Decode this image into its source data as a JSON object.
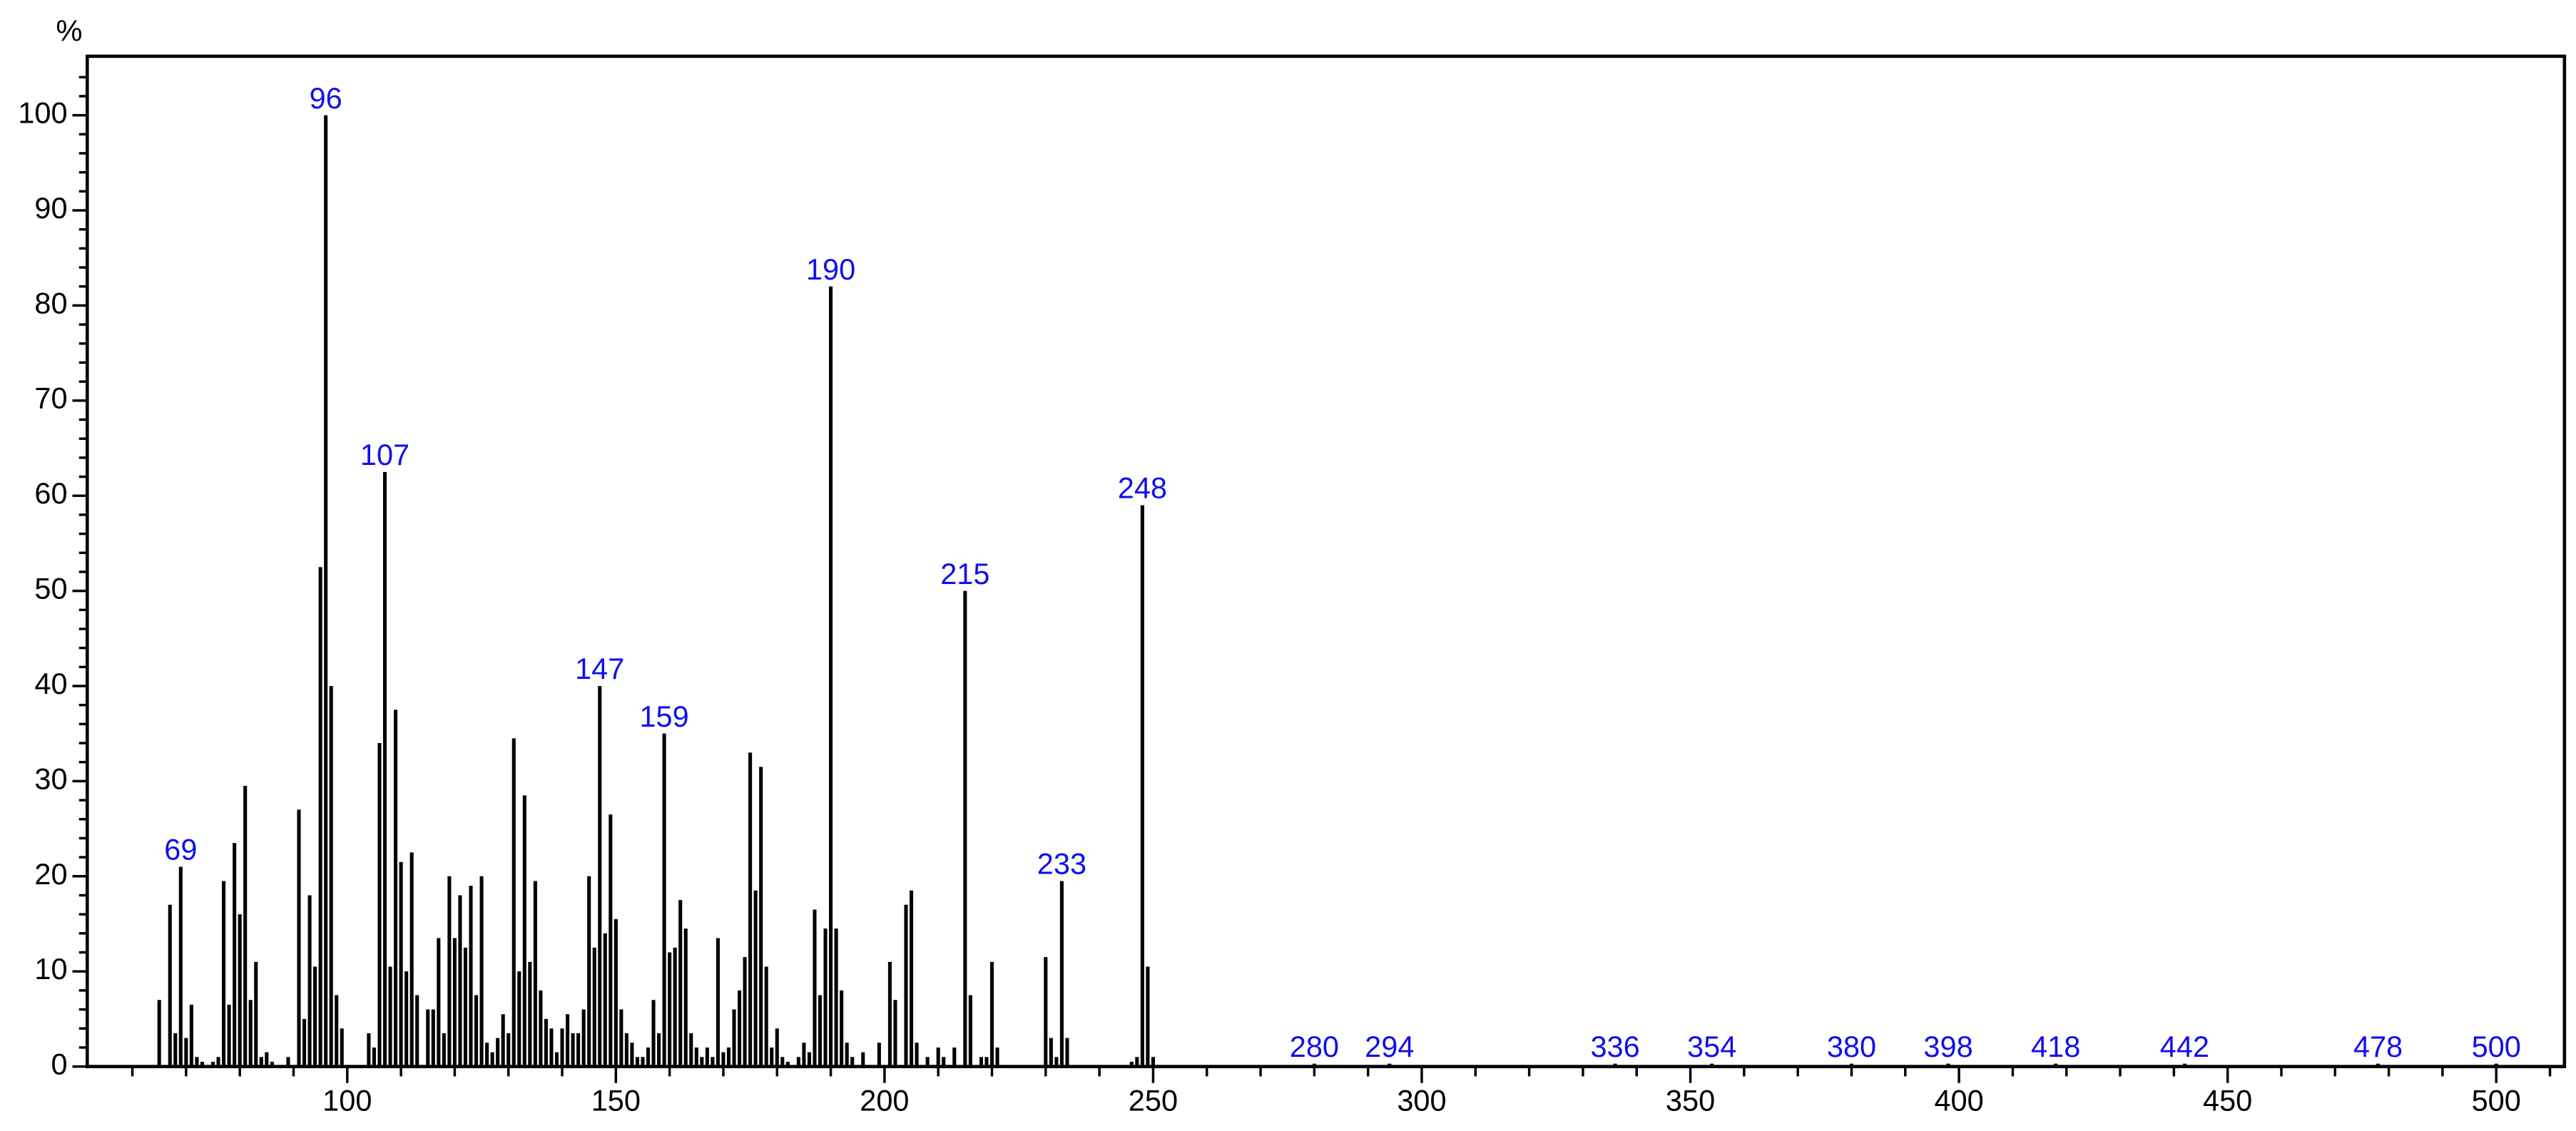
{
  "chart_data": {
    "type": "bar",
    "y_label": "%",
    "x": [
      65,
      67,
      68,
      69,
      70,
      71,
      72,
      73,
      75,
      76,
      77,
      78,
      79,
      80,
      81,
      82,
      83,
      84,
      85,
      86,
      89,
      91,
      92,
      93,
      94,
      95,
      96,
      97,
      98,
      99,
      104,
      105,
      106,
      107,
      108,
      109,
      110,
      111,
      112,
      113,
      115,
      116,
      117,
      118,
      119,
      120,
      121,
      122,
      123,
      124,
      125,
      126,
      127,
      128,
      129,
      130,
      131,
      132,
      133,
      134,
      135,
      136,
      137,
      138,
      139,
      140,
      141,
      142,
      143,
      144,
      145,
      146,
      147,
      148,
      149,
      150,
      151,
      152,
      153,
      154,
      155,
      156,
      157,
      158,
      159,
      160,
      161,
      162,
      163,
      164,
      165,
      166,
      167,
      168,
      169,
      170,
      171,
      172,
      173,
      174,
      175,
      176,
      177,
      178,
      179,
      180,
      181,
      182,
      184,
      185,
      186,
      187,
      188,
      189,
      190,
      191,
      192,
      193,
      194,
      196,
      199,
      201,
      202,
      204,
      205,
      206,
      208,
      210,
      211,
      213,
      215,
      216,
      218,
      219,
      220,
      221,
      230,
      231,
      232,
      233,
      234,
      246,
      247,
      248,
      249,
      250,
      280,
      294,
      336,
      354,
      380,
      398,
      418,
      442,
      478,
      500
    ],
    "values": [
      7,
      17,
      3.5,
      21,
      3,
      6.5,
      1,
      0.5,
      0.5,
      1,
      19.5,
      6.5,
      23.5,
      16,
      29.5,
      7,
      11,
      1,
      1.5,
      0.5,
      1,
      27,
      5,
      18,
      10.5,
      52.5,
      100,
      40,
      7.5,
      4,
      3.5,
      2,
      34,
      62.5,
      10.5,
      37.5,
      21.5,
      10,
      22.5,
      7.5,
      6,
      6,
      13.5,
      3.5,
      20,
      13.5,
      18,
      12.5,
      19,
      7.5,
      20,
      2.5,
      1.5,
      3,
      5.5,
      3.5,
      34.5,
      10,
      28.5,
      11,
      19.5,
      8,
      5,
      4,
      1.5,
      4,
      5.5,
      3.5,
      3.5,
      6,
      20,
      12.5,
      40,
      14,
      26.5,
      15.5,
      6,
      3.5,
      2.5,
      1,
      1,
      2,
      7,
      3.5,
      35,
      12,
      12.5,
      17.5,
      14.5,
      3.5,
      2,
      1,
      2,
      1,
      13.5,
      1.5,
      2,
      6,
      8,
      11.5,
      33,
      18.5,
      31.5,
      10.5,
      2,
      4,
      1,
      0.5,
      1,
      2.5,
      1.5,
      16.5,
      7.5,
      14.5,
      82,
      14.5,
      8,
      2.5,
      1,
      1.5,
      2.5,
      11,
      7,
      17,
      18.5,
      2.5,
      1,
      2,
      1,
      2,
      50,
      7.5,
      1,
      1,
      11,
      2,
      11.5,
      3,
      1,
      19.5,
      3,
      0.5,
      1,
      59,
      10.5,
      1,
      0.3,
      0.3,
      0.3,
      0.3,
      0.3,
      0.3,
      0.3,
      0.3,
      0.3,
      0.3
    ],
    "peak_labels": [
      69,
      96,
      107,
      147,
      159,
      190,
      215,
      233,
      248,
      280,
      294,
      336,
      354,
      380,
      398,
      418,
      442,
      478,
      500
    ],
    "color": "#000000",
    "label_color": "#1010ee",
    "xlim": [
      51.6,
      512.7
    ],
    "ylim": [
      0,
      106.2
    ],
    "xticks": [
      100,
      150,
      200,
      250,
      300,
      350,
      400,
      450,
      500
    ],
    "xminorticks": [
      60,
      70,
      80,
      90,
      110,
      120,
      130,
      140,
      160,
      170,
      180,
      190,
      210,
      220,
      230,
      240,
      260,
      270,
      280,
      290,
      310,
      320,
      330,
      340,
      360,
      370,
      380,
      390,
      410,
      420,
      430,
      440,
      460,
      470,
      480,
      490,
      510
    ],
    "yticks": [
      0,
      10,
      20,
      30,
      40,
      50,
      60,
      70,
      80,
      90,
      100
    ],
    "yminorticks": [
      2,
      4,
      6,
      8,
      12,
      14,
      16,
      18,
      22,
      24,
      26,
      28,
      32,
      34,
      36,
      38,
      42,
      44,
      46,
      48,
      52,
      54,
      56,
      58,
      62,
      64,
      66,
      68,
      72,
      74,
      76,
      78,
      82,
      84,
      86,
      88,
      92,
      94,
      96,
      98,
      102,
      104
    ]
  }
}
